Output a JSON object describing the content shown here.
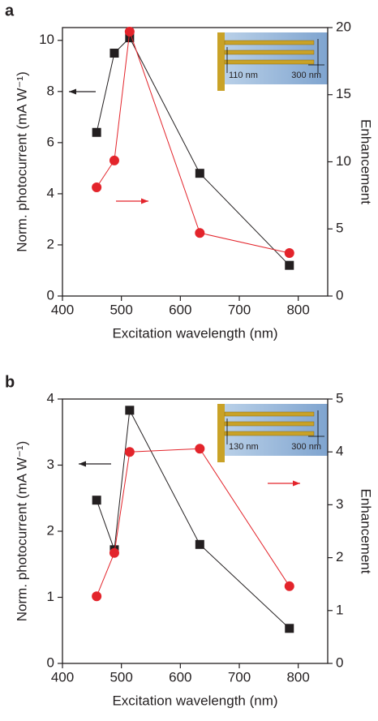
{
  "chart_data": [
    {
      "type": "line",
      "panel_label": "a",
      "x_label": "Excitation wavelength (nm)",
      "y_label": "Norm. photocurrent (mA W⁻¹)",
      "y2_label": "Enhancement",
      "x": [
        458,
        488,
        514,
        633,
        785
      ],
      "xlim": [
        400,
        850
      ],
      "xticks": [
        400,
        500,
        600,
        700,
        800
      ],
      "ylim": [
        0,
        10.5
      ],
      "yticks": [
        0,
        2,
        4,
        6,
        8,
        10
      ],
      "y2lim": [
        0,
        20
      ],
      "y2ticks": [
        0,
        5,
        10,
        15,
        20
      ],
      "annotations": [
        "110 nm",
        "300 nm"
      ],
      "series": [
        {
          "color": "#231f20",
          "marker": "square",
          "values": [
            6.4,
            9.5,
            10.1,
            4.8,
            1.2
          ]
        },
        {
          "color": "#e3242b",
          "marker": "circle",
          "axis": "y2",
          "values": [
            8.1,
            10.1,
            19.7,
            4.7,
            3.2
          ]
        }
      ]
    },
    {
      "type": "line",
      "panel_label": "b",
      "x_label": "Excitation wavelength (nm)",
      "y_label": "Norm. photocurrent (mA W⁻¹)",
      "y2_label": "Enhancement",
      "x": [
        458,
        488,
        514,
        633,
        785
      ],
      "xlim": [
        400,
        850
      ],
      "xticks": [
        400,
        500,
        600,
        700,
        800
      ],
      "ylim": [
        0,
        4
      ],
      "yticks": [
        0,
        1,
        2,
        3,
        4
      ],
      "y2lim": [
        0,
        5
      ],
      "y2ticks": [
        0,
        1,
        2,
        3,
        4,
        5
      ],
      "annotations": [
        "130 nm",
        "300 nm"
      ],
      "series": [
        {
          "color": "#231f20",
          "marker": "square",
          "values": [
            2.47,
            1.72,
            3.83,
            1.8,
            0.53
          ]
        },
        {
          "color": "#e3242b",
          "marker": "circle",
          "axis": "y2",
          "values": [
            1.27,
            2.09,
            4.0,
            4.06,
            1.46
          ]
        }
      ]
    }
  ]
}
